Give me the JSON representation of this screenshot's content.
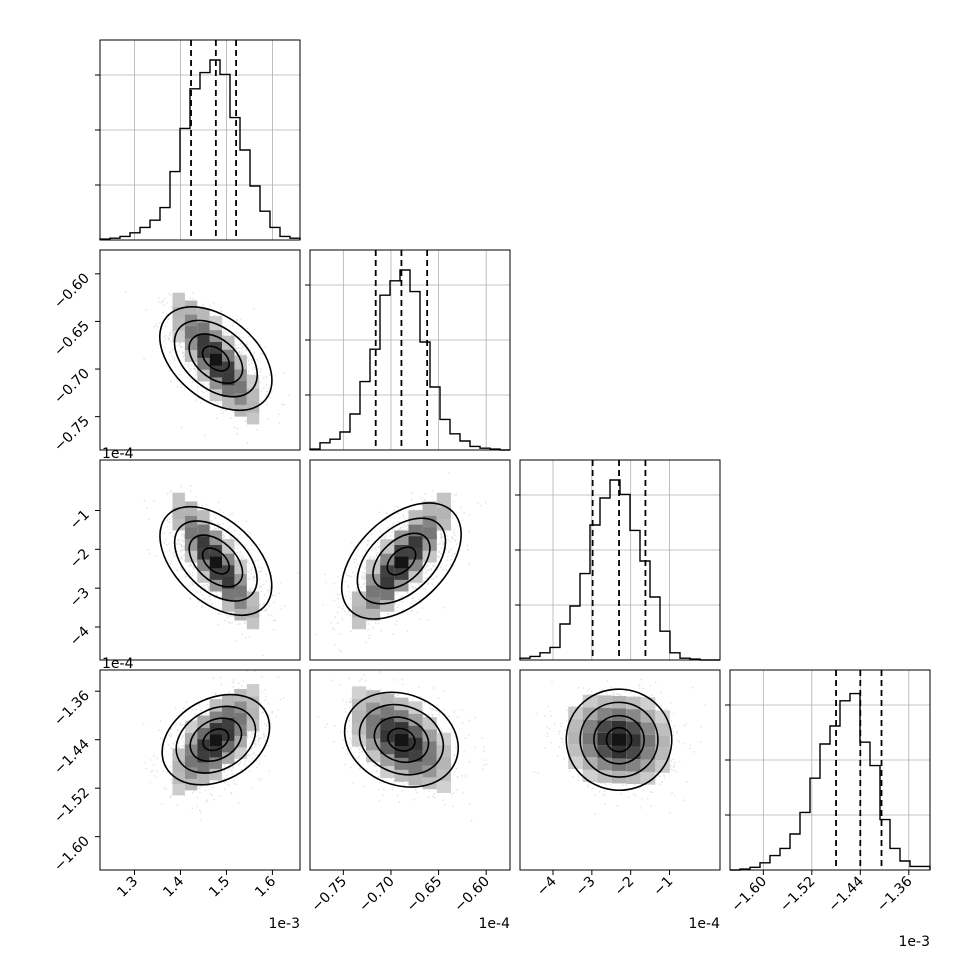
{
  "chart_data": {
    "type": "corner",
    "parameters": [
      {
        "ticks": [
          "1.3",
          "1.4",
          "1.5",
          "1.6"
        ],
        "tick_values": [
          1.3,
          1.4,
          1.5,
          1.6
        ],
        "range": [
          1.225,
          1.66
        ],
        "offset": "1e-3",
        "quantiles": [
          1.423,
          1.477,
          1.521
        ]
      },
      {
        "ticks": [
          "−0.75",
          "−0.70",
          "−0.65",
          "−0.60"
        ],
        "tick_values": [
          -0.75,
          -0.7,
          -0.65,
          -0.6
        ],
        "range": [
          -0.785,
          -0.575
        ],
        "offset": "1e-4",
        "quantiles": [
          -0.716,
          -0.689,
          -0.662
        ]
      },
      {
        "ticks": [
          "−4",
          "−3",
          "−2",
          "−1"
        ],
        "tick_values": [
          -4,
          -3,
          -2,
          -1
        ],
        "range": [
          -4.85,
          0.3
        ],
        "offset": "1e-4",
        "quantiles": [
          -2.98,
          -2.3,
          -1.62
        ]
      },
      {
        "ticks": [
          "−1.60",
          "−1.52",
          "−1.44",
          "−1.36"
        ],
        "tick_values": [
          -1.6,
          -1.52,
          -1.44,
          -1.36
        ],
        "range": [
          -1.655,
          -1.325
        ],
        "offset": "1e-3",
        "quantiles": [
          -1.48,
          -1.44,
          -1.405
        ]
      }
    ],
    "histograms": [
      [
        0.005,
        0.01,
        0.02,
        0.04,
        0.07,
        0.11,
        0.18,
        0.38,
        0.62,
        0.84,
        0.93,
        1.0,
        0.92,
        0.68,
        0.5,
        0.3,
        0.16,
        0.07,
        0.02,
        0.01
      ],
      [
        0.005,
        0.04,
        0.06,
        0.1,
        0.2,
        0.38,
        0.56,
        0.86,
        0.94,
        1.0,
        0.88,
        0.6,
        0.35,
        0.17,
        0.09,
        0.05,
        0.02,
        0.01,
        0.005,
        0.0
      ],
      [
        0.01,
        0.02,
        0.04,
        0.07,
        0.2,
        0.3,
        0.48,
        0.75,
        0.9,
        1.0,
        0.92,
        0.72,
        0.55,
        0.35,
        0.16,
        0.04,
        0.01,
        0.005,
        0.0,
        0.0
      ],
      [
        0.0,
        0.005,
        0.015,
        0.04,
        0.08,
        0.12,
        0.2,
        0.32,
        0.51,
        0.7,
        0.8,
        0.94,
        0.98,
        0.71,
        0.58,
        0.28,
        0.12,
        0.05,
        0.02,
        0.02
      ]
    ],
    "correlations": {
      "0-1": -0.55,
      "0-2": -0.6,
      "1-2": 0.6,
      "0-3": 0.4,
      "1-3": -0.3,
      "2-3": -0.05
    },
    "grid": true
  }
}
